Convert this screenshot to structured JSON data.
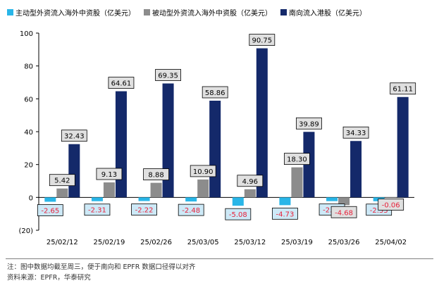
{
  "chart_data": {
    "type": "bar",
    "categories": [
      "25/02/12",
      "25/02/19",
      "25/02/26",
      "25/03/05",
      "25/03/12",
      "25/03/19",
      "25/03/26",
      "25/04/02"
    ],
    "series": [
      {
        "name": "主动型外资流入海外中资股（亿美元）",
        "color": "#29b6e8",
        "values": [
          -2.65,
          -2.31,
          -2.22,
          -2.48,
          -5.08,
          -4.73,
          -2.27,
          -2.33
        ]
      },
      {
        "name": "被动型外资流入海外中资股（亿美元）",
        "color": "#8c8c8c",
        "values": [
          5.42,
          9.13,
          8.88,
          10.9,
          4.96,
          18.3,
          -4.68,
          -0.06
        ]
      },
      {
        "name": "南向流入港股（亿美元）",
        "color": "#14296a",
        "values": [
          32.43,
          64.61,
          69.35,
          58.86,
          90.75,
          39.89,
          34.33,
          61.11
        ]
      }
    ],
    "ylim": [
      -20,
      100
    ],
    "yticks": [
      -20,
      0,
      20,
      40,
      60,
      80,
      100
    ],
    "ytick_labels": [
      "(20)",
      "0",
      "20",
      "40",
      "60",
      "80",
      "100"
    ],
    "value_labels": [
      [
        "-2.65",
        "-2.31",
        "-2.22",
        "-2.48",
        "-5.08",
        "-4.73",
        "-2.27",
        "-2.33"
      ],
      [
        "5.42",
        "9.13",
        "8.88",
        "10.90",
        "4.96",
        "18.30",
        "-4.68",
        "-0.06"
      ],
      [
        "32.43",
        "64.61",
        "69.35",
        "58.86",
        "90.75",
        "39.89",
        "34.33",
        "61.11"
      ]
    ],
    "grid": false,
    "legend_position": "top-left",
    "negative_label_color": "#e8213a"
  },
  "notes": {
    "line1": "注：图中数据均截至周三，便于南向和 EPFR 数据口径得以对齐",
    "line2": "资料来源：EPFR，华泰研究"
  }
}
